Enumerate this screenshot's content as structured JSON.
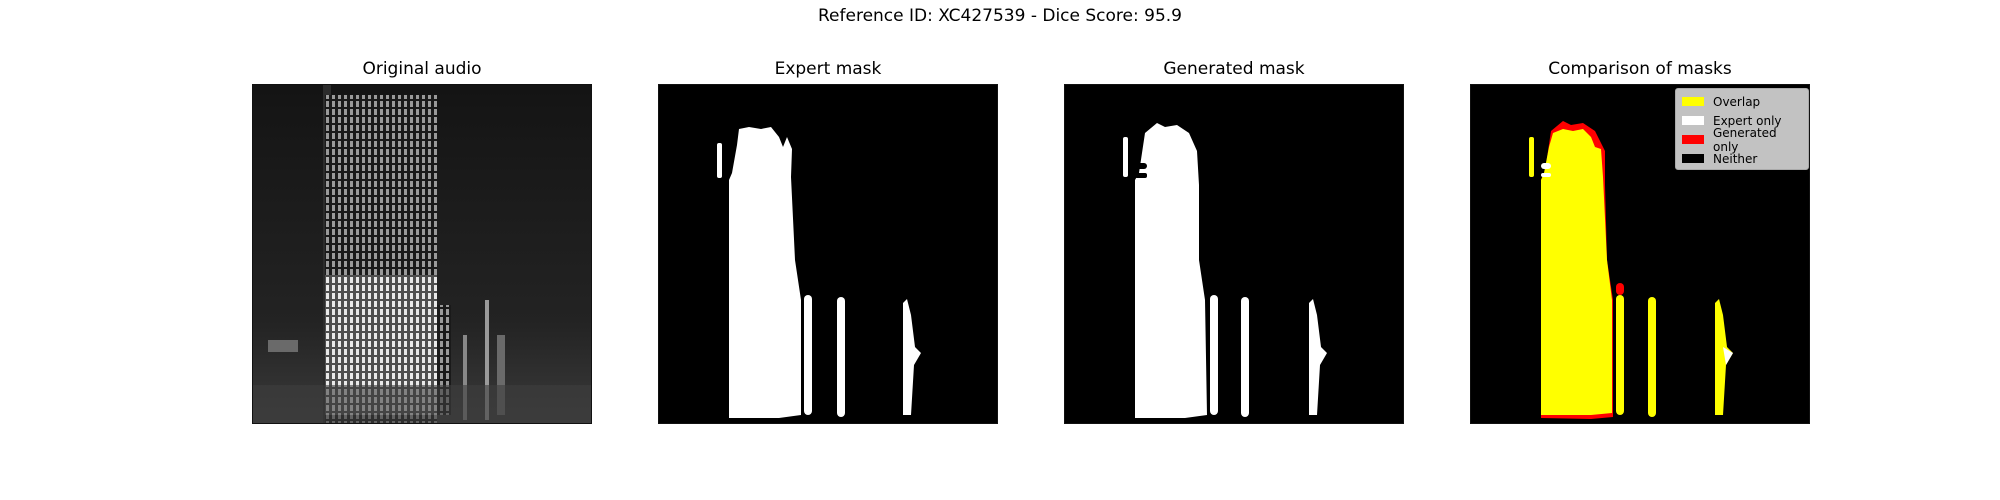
{
  "suptitle": "Reference ID: XC427539 - Dice Score: 95.9",
  "panels": [
    {
      "title": "Original audio"
    },
    {
      "title": "Expert mask"
    },
    {
      "title": "Generated mask"
    },
    {
      "title": "Comparison of masks"
    }
  ],
  "legend": {
    "items": [
      {
        "label": "Overlap",
        "color": "#ffff00"
      },
      {
        "label": "Expert only",
        "color": "#ffffff"
      },
      {
        "label": "Generated only",
        "color": "#ff0000"
      },
      {
        "label": "Neither",
        "color": "#000000"
      }
    ]
  },
  "colors": {
    "overlap": "#ffff00",
    "expert_only": "#ffffff",
    "generated_only": "#ff0000",
    "neither": "#000000"
  }
}
